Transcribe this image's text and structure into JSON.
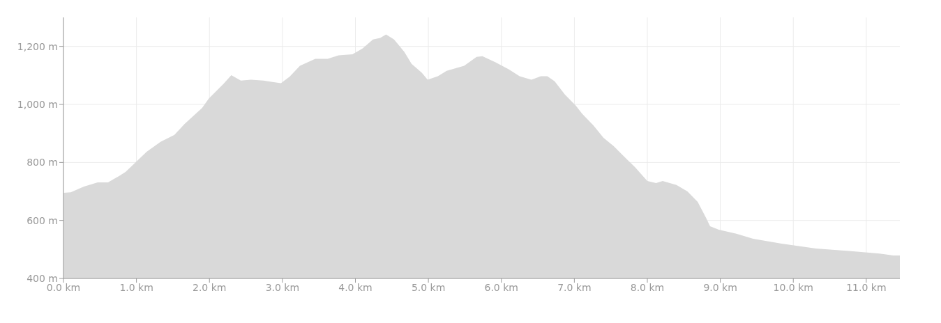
{
  "chart_data": {
    "type": "area",
    "color": "#d9d9d9",
    "grid": true,
    "x": [
      0,
      0.1,
      0.28,
      0.47,
      0.61,
      0.76,
      0.85,
      0.99,
      1.14,
      1.33,
      1.52,
      1.66,
      1.9,
      1.99,
      2.19,
      2.3,
      2.43,
      2.57,
      2.74,
      2.88,
      2.98,
      3.1,
      3.24,
      3.45,
      3.62,
      3.77,
      3.96,
      4.1,
      4.24,
      4.34,
      4.42,
      4.53,
      4.67,
      4.77,
      4.91,
      4.99,
      5.13,
      5.25,
      5.49,
      5.66,
      5.74,
      5.92,
      6.1,
      6.25,
      6.41,
      6.54,
      6.63,
      6.73,
      6.87,
      7.02,
      7.11,
      7.26,
      7.4,
      7.54,
      7.69,
      7.83,
      8.0,
      8.12,
      8.21,
      8.4,
      8.55,
      8.69,
      8.8,
      8.86,
      8.98,
      9.22,
      9.45,
      9.84,
      10.31,
      10.79,
      11.18,
      11.37,
      11.46
    ],
    "values": [
      695,
      697,
      717,
      731,
      731,
      753,
      767,
      801,
      837,
      871,
      895,
      933,
      988,
      1020,
      1070,
      1101,
      1082,
      1085,
      1082,
      1077,
      1073,
      1096,
      1133,
      1157,
      1157,
      1169,
      1173,
      1193,
      1224,
      1229,
      1241,
      1224,
      1181,
      1140,
      1109,
      1085,
      1097,
      1116,
      1133,
      1164,
      1166,
      1145,
      1121,
      1097,
      1085,
      1097,
      1097,
      1080,
      1034,
      996,
      967,
      928,
      885,
      856,
      818,
      784,
      736,
      729,
      736,
      722,
      700,
      664,
      611,
      580,
      568,
      554,
      537,
      520,
      503,
      494,
      486,
      479,
      479
    ],
    "xlim": [
      0,
      11.46
    ],
    "xticks": [
      {
        "value": 0,
        "label": "0.0 km"
      },
      {
        "value": 1,
        "label": "1.0 km"
      },
      {
        "value": 2,
        "label": "2.0 km"
      },
      {
        "value": 3,
        "label": "3.0 km"
      },
      {
        "value": 4,
        "label": "4.0 km"
      },
      {
        "value": 5,
        "label": "5.0 km"
      },
      {
        "value": 6,
        "label": "6.0 km"
      },
      {
        "value": 7,
        "label": "7.0 km"
      },
      {
        "value": 8,
        "label": "8.0 km"
      },
      {
        "value": 9,
        "label": "9.0 km"
      },
      {
        "value": 10,
        "label": "10.0 km"
      },
      {
        "value": 11,
        "label": "11.0 km"
      }
    ],
    "ylim": [
      400,
      1300
    ],
    "yticks": [
      {
        "value": 400,
        "label": "400 m"
      },
      {
        "value": 600,
        "label": "600 m"
      },
      {
        "value": 800,
        "label": "800 m"
      },
      {
        "value": 1000,
        "label": "1,000 m"
      },
      {
        "value": 1200,
        "label": "1,200 m"
      }
    ]
  }
}
